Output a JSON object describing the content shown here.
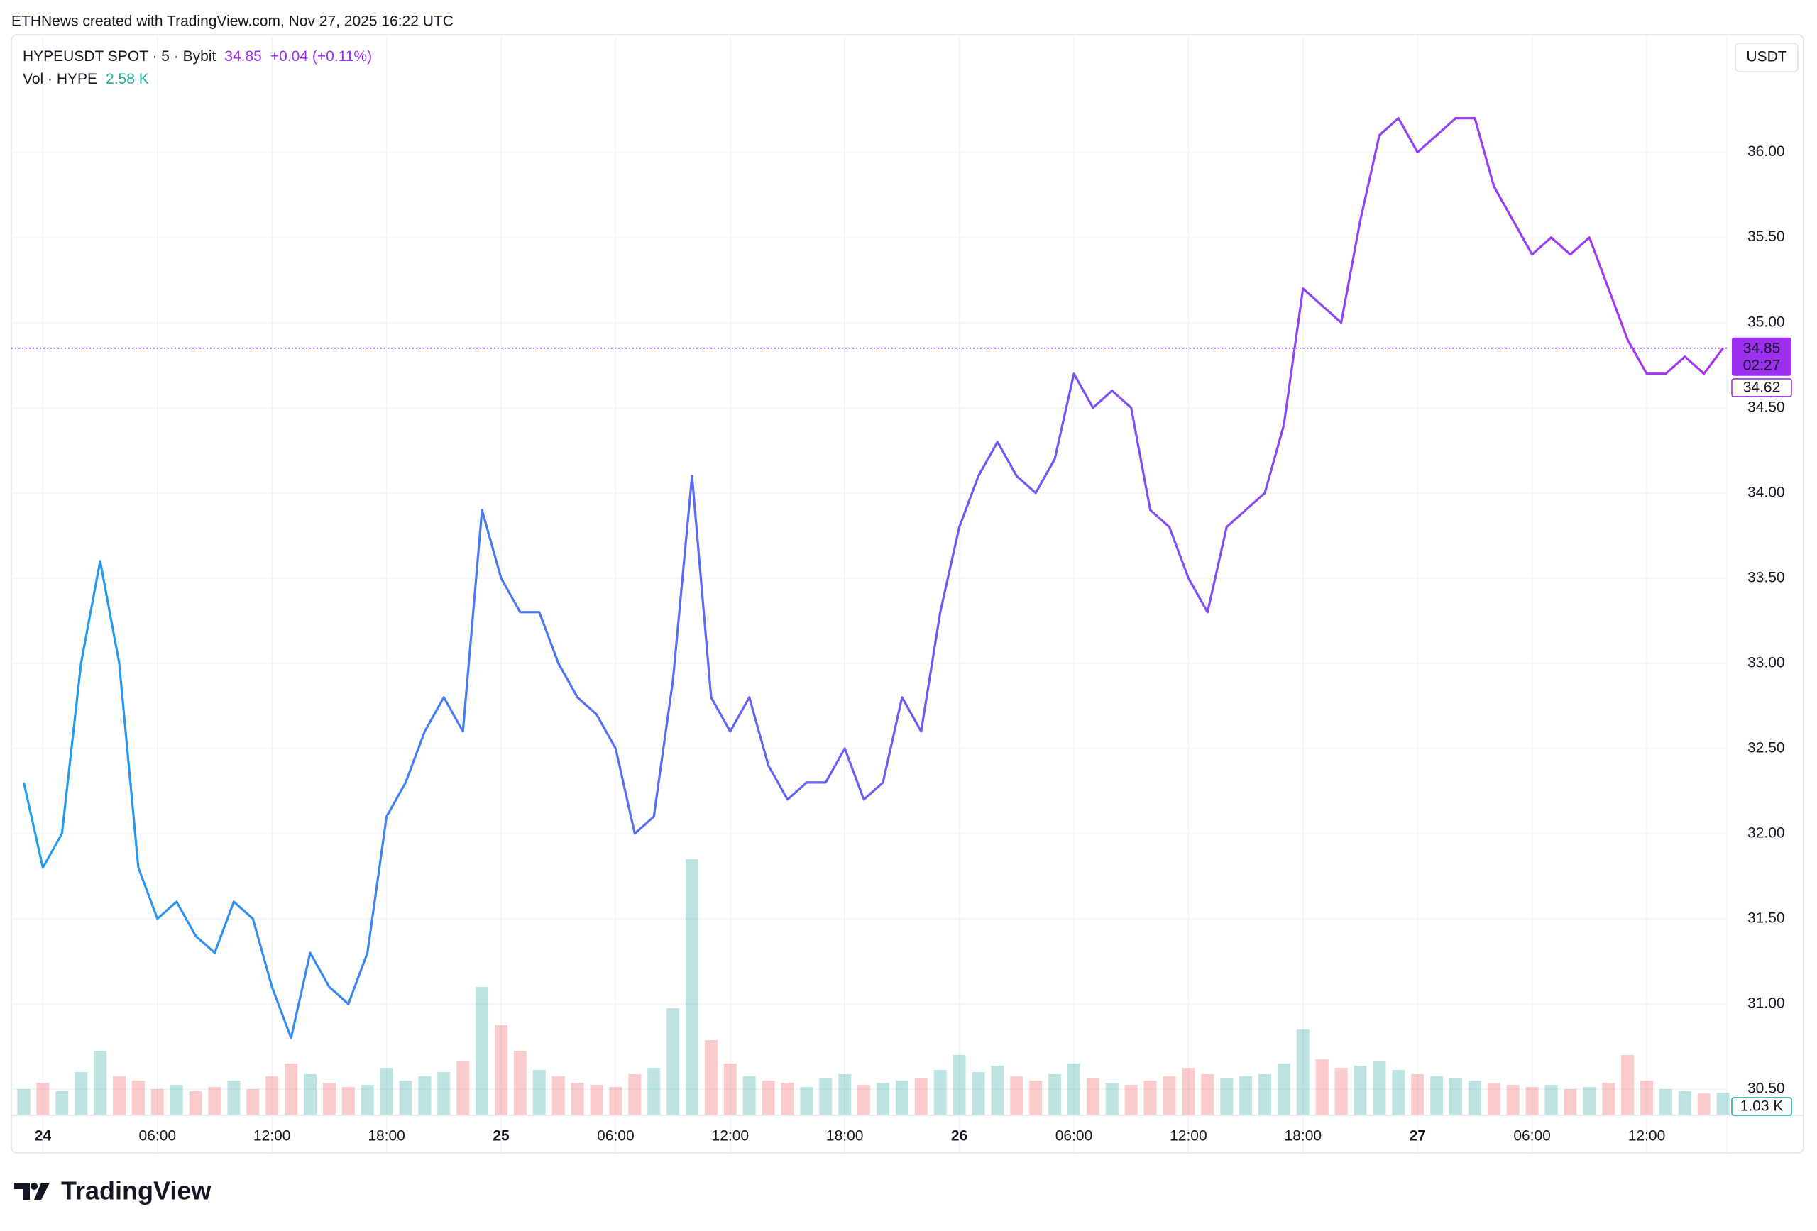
{
  "chart_data": {
    "type": "line",
    "attribution": "ETHNews created with TradingView.com, Nov 27, 2025 16:22 UTC",
    "symbol": "HYPEUSDT SPOT · 5 · Bybit",
    "last_price": 34.85,
    "change_label": "+0.04 (+0.11%)",
    "volume_name": "Vol · HYPE",
    "volume_last_label": "2.58 K",
    "currency": "USDT",
    "countdown": "02:27",
    "second_price_tag": 34.62,
    "volume_tag_label": "1.03 K",
    "brand": "TradingView",
    "categories": [
      null,
      "24",
      null,
      null,
      null,
      null,
      null,
      "06:00",
      null,
      null,
      null,
      null,
      null,
      "12:00",
      null,
      null,
      null,
      null,
      null,
      "18:00",
      null,
      null,
      null,
      null,
      null,
      "25",
      null,
      null,
      null,
      null,
      null,
      "06:00",
      null,
      null,
      null,
      null,
      null,
      "12:00",
      null,
      null,
      null,
      null,
      null,
      "18:00",
      null,
      null,
      null,
      null,
      null,
      "26",
      null,
      null,
      null,
      null,
      null,
      "06:00",
      null,
      null,
      null,
      null,
      null,
      "12:00",
      null,
      null,
      null,
      null,
      null,
      "18:00",
      null,
      null,
      null,
      null,
      null,
      "27",
      null,
      null,
      null,
      null,
      null,
      "06:00",
      null,
      null,
      null,
      null,
      null,
      "12:00",
      null,
      null,
      null,
      null
    ],
    "series": [
      {
        "colors": [
          "#1ea0ef",
          "#6a5cf5",
          "#a932f6"
        ],
        "values": [
          32.3,
          31.8,
          32.0,
          33.0,
          33.6,
          33.0,
          31.8,
          31.5,
          31.6,
          31.4,
          31.3,
          31.6,
          31.5,
          31.1,
          30.8,
          31.3,
          31.1,
          31.0,
          31.3,
          32.1,
          32.3,
          32.6,
          32.8,
          32.6,
          33.9,
          33.5,
          33.3,
          33.3,
          33.0,
          32.8,
          32.7,
          32.5,
          32.0,
          32.1,
          32.9,
          34.1,
          32.8,
          32.6,
          32.8,
          32.4,
          32.2,
          32.3,
          32.3,
          32.5,
          32.2,
          32.3,
          32.8,
          32.6,
          33.3,
          33.8,
          34.1,
          34.3,
          34.1,
          34.0,
          34.2,
          34.7,
          34.5,
          34.6,
          34.5,
          33.9,
          33.8,
          33.5,
          33.3,
          33.8,
          33.9,
          34.0,
          34.4,
          35.2,
          35.1,
          35.0,
          35.6,
          36.1,
          36.2,
          36.0,
          36.1,
          36.2,
          36.2,
          35.8,
          35.6,
          35.4,
          35.5,
          35.4,
          35.5,
          35.2,
          34.9,
          34.7,
          34.7,
          34.8,
          34.7,
          34.85
        ]
      }
    ],
    "volume": [
      1.2,
      1.5,
      1.1,
      2.0,
      3.0,
      1.8,
      1.6,
      1.2,
      1.4,
      1.1,
      1.3,
      1.6,
      1.2,
      1.8,
      2.4,
      1.9,
      1.5,
      1.3,
      1.4,
      2.2,
      1.6,
      1.8,
      2.0,
      2.5,
      6.0,
      4.2,
      3.0,
      2.1,
      1.8,
      1.5,
      1.4,
      1.3,
      1.9,
      2.2,
      5.0,
      12.0,
      3.5,
      2.4,
      1.8,
      1.6,
      1.5,
      1.3,
      1.7,
      1.9,
      1.4,
      1.5,
      1.6,
      1.7,
      2.1,
      2.8,
      2.0,
      2.3,
      1.8,
      1.6,
      1.9,
      2.4,
      1.7,
      1.5,
      1.4,
      1.6,
      1.8,
      2.2,
      1.9,
      1.7,
      1.8,
      1.9,
      2.4,
      4.0,
      2.6,
      2.2,
      2.3,
      2.5,
      2.1,
      1.9,
      1.8,
      1.7,
      1.6,
      1.5,
      1.4,
      1.3,
      1.4,
      1.2,
      1.3,
      1.5,
      2.8,
      1.6,
      1.2,
      1.1,
      1.0,
      1.03
    ],
    "volume_up_color": "#26a69a",
    "volume_down_color": "#ef5350",
    "ylim": [
      30.35,
      36.69
    ],
    "yticks": [
      {
        "value": 30.5,
        "label": "30.50"
      },
      {
        "value": 31,
        "label": "31.00"
      },
      {
        "value": 31.5,
        "label": "31.50"
      },
      {
        "value": 32,
        "label": "32.00"
      },
      {
        "value": 32.5,
        "label": "32.50"
      },
      {
        "value": 33,
        "label": "33.00"
      },
      {
        "value": 33.5,
        "label": "33.50"
      },
      {
        "value": 34,
        "label": "34.00"
      },
      {
        "value": 34.5,
        "label": "34.50"
      },
      {
        "value": 35,
        "label": "35.00"
      },
      {
        "value": 35.5,
        "label": "35.50"
      },
      {
        "value": 36,
        "label": "36.00"
      }
    ],
    "grid": true,
    "accent_color": "#9c2ff0"
  }
}
